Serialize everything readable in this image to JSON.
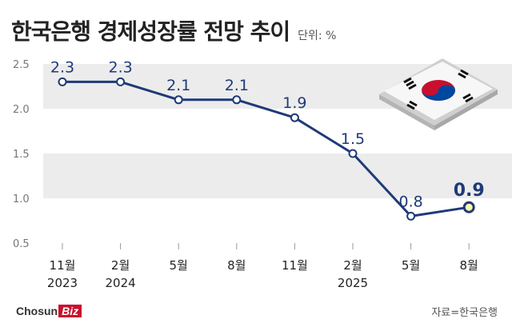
{
  "header": {
    "title": "한국은행 경제성장률 전망 추이",
    "unit": "단위: %"
  },
  "footer": {
    "logo_main": "Chosun",
    "logo_accent": "Biz",
    "source": "자료=한국은행"
  },
  "colors": {
    "line": "#1f3a78",
    "band": "#ececec",
    "last_point_fill": "#ffffa8",
    "text": "#222222",
    "axis_text": "#777777"
  },
  "chart_data": {
    "type": "line",
    "title": "한국은행 경제성장률 전망 추이",
    "xlabel": "",
    "ylabel": "",
    "ylim": [
      0.5,
      2.5
    ],
    "y_ticks": [
      "0.5",
      "1.0",
      "1.5",
      "2.0",
      "2.5"
    ],
    "grid": false,
    "categories": [
      "11월",
      "2월",
      "5월",
      "8월",
      "11월",
      "2월",
      "5월",
      "8월"
    ],
    "year_labels": [
      "2023",
      "2024",
      "",
      "",
      "",
      "2025",
      "",
      ""
    ],
    "values": [
      2.3,
      2.3,
      2.1,
      2.1,
      1.9,
      1.5,
      0.8,
      0.9
    ],
    "value_labels": [
      "2.3",
      "2.3",
      "2.1",
      "2.1",
      "1.9",
      "1.5",
      "0.8",
      "0.9"
    ],
    "highlight_last": true
  }
}
